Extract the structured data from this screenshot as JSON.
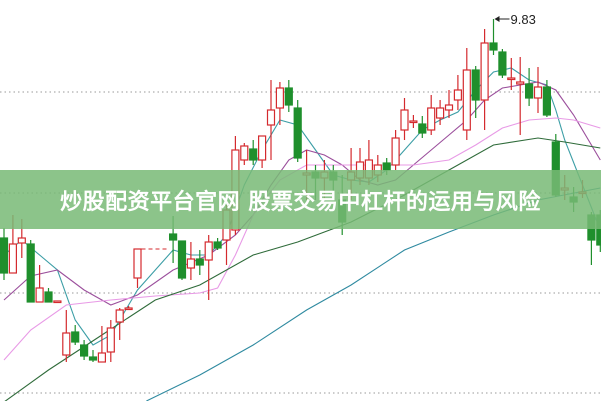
{
  "banner": {
    "title": "炒股配资平台官网 股票交易中杠杆的运用与风险",
    "background": "#7cba7a"
  },
  "chart_data": {
    "type": "candlestick",
    "ylim": [
      6.01,
      10.02
    ],
    "grid": {
      "y_dotted": [
        9.1,
        8.09,
        7.09,
        6.09
      ]
    },
    "colors": {
      "up": "#d42a2e",
      "down": "#1f8f2c"
    },
    "candles_ohlc_order": "open, close, high, low",
    "candles": [
      [
        7.64,
        7.29,
        7.74,
        7.22
      ],
      [
        7.29,
        7.58,
        7.87,
        7.29
      ],
      [
        7.59,
        7.64,
        7.83,
        7.44
      ],
      [
        7.58,
        7.0,
        7.62,
        7.0
      ],
      [
        7.0,
        7.14,
        7.37,
        7.0
      ],
      [
        7.1,
        7.0,
        7.14,
        7.0
      ],
      [
        7.0,
        7.01,
        7.01,
        7.0
      ],
      [
        6.47,
        6.69,
        6.92,
        6.4
      ],
      [
        6.7,
        6.6,
        6.77,
        6.57
      ],
      [
        6.57,
        6.46,
        6.62,
        6.42
      ],
      [
        6.45,
        6.42,
        6.52,
        6.4
      ],
      [
        6.4,
        6.49,
        6.76,
        6.4
      ],
      [
        6.5,
        6.74,
        6.82,
        6.4
      ],
      [
        6.8,
        6.92,
        6.94,
        6.62
      ],
      [
        6.94,
        6.94,
        6.96,
        6.92
      ],
      [
        7.24,
        7.53,
        7.53,
        7.14
      ],
      null,
      null,
      null,
      [
        7.68,
        7.62,
        7.86,
        7.39
      ],
      [
        7.61,
        7.24,
        7.61,
        7.22
      ],
      [
        7.34,
        7.43,
        7.6,
        7.22
      ],
      [
        7.43,
        7.37,
        7.52,
        7.27
      ],
      [
        7.42,
        7.6,
        7.67,
        7.02
      ],
      [
        7.6,
        7.54,
        7.64,
        7.52
      ],
      [
        7.62,
        7.92,
        7.97,
        7.37
      ],
      [
        7.72,
        8.52,
        8.66,
        7.67
      ],
      [
        8.42,
        8.56,
        8.59,
        8.37
      ],
      [
        8.53,
        8.42,
        8.62,
        8.37
      ],
      [
        8.42,
        8.66,
        8.66,
        8.34
      ],
      [
        8.77,
        8.92,
        9.22,
        8.42
      ],
      [
        8.94,
        9.14,
        9.2,
        8.77
      ],
      [
        9.14,
        8.97,
        9.22,
        8.9
      ],
      [
        8.94,
        8.44,
        9.02,
        8.4
      ],
      [
        8.27,
        8.29,
        8.52,
        8.02
      ],
      [
        8.3,
        8.24,
        8.37,
        8.02
      ],
      [
        8.24,
        8.3,
        8.42,
        8.02
      ],
      [
        8.3,
        8.22,
        8.37,
        8.07
      ],
      [
        8.02,
        7.8,
        8.27,
        7.67
      ],
      [
        8.22,
        8.3,
        8.54,
        8.02
      ],
      [
        8.24,
        8.4,
        8.54,
        8.17
      ],
      [
        8.24,
        8.42,
        8.62,
        8.17
      ],
      [
        8.27,
        8.37,
        8.47,
        8.2
      ],
      [
        8.39,
        8.32,
        8.44,
        8.27
      ],
      [
        8.37,
        8.64,
        8.72,
        8.32
      ],
      [
        8.72,
        8.92,
        9.04,
        8.62
      ],
      [
        8.8,
        8.81,
        8.87,
        8.74
      ],
      [
        8.78,
        8.69,
        8.86,
        8.64
      ],
      [
        8.72,
        8.94,
        9.07,
        8.67
      ],
      [
        8.84,
        8.94,
        9.02,
        8.77
      ],
      [
        8.92,
        8.97,
        9.12,
        8.84
      ],
      [
        9.02,
        9.12,
        9.27,
        8.92
      ],
      [
        8.72,
        9.32,
        9.54,
        8.62
      ],
      [
        9.32,
        9.02,
        9.36,
        8.84
      ],
      [
        9.02,
        9.59,
        9.73,
        8.72
      ],
      [
        9.59,
        9.52,
        9.83,
        9.47
      ],
      [
        9.5,
        9.27,
        9.53,
        9.24
      ],
      [
        9.24,
        9.24,
        9.44,
        9.12
      ],
      [
        9.18,
        9.2,
        9.45,
        8.67
      ],
      [
        9.18,
        9.04,
        9.34,
        8.96
      ],
      [
        9.04,
        9.15,
        9.35,
        8.89
      ],
      [
        9.15,
        8.87,
        9.22,
        8.85
      ],
      [
        8.6,
        8.07,
        8.68,
        8.05
      ],
      [
        8.12,
        8.14,
        8.27,
        8.02
      ],
      [
        8.05,
        8.0,
        8.15,
        7.9
      ],
      [
        8.09,
        8.1,
        8.22,
        8.04
      ],
      [
        7.87,
        7.62,
        7.9,
        7.37
      ],
      [
        7.87,
        7.57,
        7.92,
        7.5
      ]
    ],
    "moving_averages": [
      {
        "color": "#3c9ea6",
        "points": [
          [
            0,
            7.47
          ],
          [
            2,
            7.62
          ],
          [
            4,
            7.47
          ],
          [
            6,
            7.32
          ],
          [
            8,
            6.82
          ],
          [
            10,
            6.57
          ],
          [
            12,
            6.67
          ],
          [
            14,
            6.97
          ],
          [
            15,
            7.12
          ],
          [
            19,
            7.52
          ],
          [
            21,
            7.47
          ],
          [
            23,
            7.47
          ],
          [
            25,
            7.67
          ],
          [
            27,
            8.17
          ],
          [
            29,
            8.52
          ],
          [
            31,
            8.82
          ],
          [
            33,
            8.77
          ],
          [
            35,
            8.52
          ],
          [
            37,
            8.27
          ],
          [
            39,
            8.22
          ],
          [
            41,
            8.2
          ],
          [
            43,
            8.32
          ],
          [
            45,
            8.52
          ],
          [
            47,
            8.72
          ],
          [
            49,
            8.82
          ],
          [
            51,
            8.9
          ],
          [
            53,
            9.12
          ],
          [
            55,
            9.3
          ],
          [
            57,
            9.34
          ],
          [
            59,
            9.22
          ],
          [
            61,
            9.17
          ],
          [
            62,
            8.92
          ],
          [
            63,
            8.62
          ],
          [
            65,
            8.17
          ],
          [
            67,
            7.72
          ]
        ]
      },
      {
        "color": "#9b4f9c",
        "points": [
          [
            0,
            7.02
          ],
          [
            3,
            7.26
          ],
          [
            6,
            7.32
          ],
          [
            9,
            7.12
          ],
          [
            12,
            6.97
          ],
          [
            15,
            7.07
          ],
          [
            19,
            7.32
          ],
          [
            23,
            7.47
          ],
          [
            26,
            7.67
          ],
          [
            28,
            7.87
          ],
          [
            30,
            8.17
          ],
          [
            32,
            8.42
          ],
          [
            34,
            8.52
          ],
          [
            36,
            8.47
          ],
          [
            38,
            8.37
          ],
          [
            40,
            8.22
          ],
          [
            42,
            8.17
          ],
          [
            44,
            8.22
          ],
          [
            46,
            8.37
          ],
          [
            48,
            8.52
          ],
          [
            50,
            8.67
          ],
          [
            52,
            8.82
          ],
          [
            54,
            9.02
          ],
          [
            56,
            9.14
          ],
          [
            58,
            9.17
          ],
          [
            60,
            9.2
          ],
          [
            62,
            9.12
          ],
          [
            64,
            8.87
          ],
          [
            66,
            8.57
          ],
          [
            67,
            8.42
          ]
        ]
      },
      {
        "color": "#e89ae6",
        "points": [
          [
            0,
            6.42
          ],
          [
            3,
            6.72
          ],
          [
            7,
            6.97
          ],
          [
            12,
            7.02
          ],
          [
            17,
            7.06
          ],
          [
            22,
            7.09
          ],
          [
            24,
            7.14
          ],
          [
            26,
            7.47
          ],
          [
            28,
            7.87
          ],
          [
            31,
            8.22
          ],
          [
            34,
            8.37
          ],
          [
            40,
            8.37
          ],
          [
            46,
            8.37
          ],
          [
            50,
            8.42
          ],
          [
            53,
            8.57
          ],
          [
            56,
            8.74
          ],
          [
            59,
            8.82
          ],
          [
            62,
            8.84
          ],
          [
            64,
            8.82
          ],
          [
            67,
            8.74
          ]
        ]
      },
      {
        "color": "#2f6b3a",
        "points": [
          [
            0,
            6.0
          ],
          [
            5,
            6.32
          ],
          [
            11,
            6.67
          ],
          [
            17,
            7.02
          ],
          [
            22,
            7.17
          ],
          [
            28,
            7.47
          ],
          [
            33,
            7.6
          ],
          [
            39,
            7.8
          ],
          [
            45,
            8.07
          ],
          [
            50,
            8.32
          ],
          [
            55,
            8.57
          ],
          [
            60,
            8.64
          ],
          [
            63,
            8.6
          ],
          [
            67,
            8.54
          ]
        ]
      },
      {
        "color": "#2f8aa0",
        "points": [
          [
            16,
            6.01
          ],
          [
            22,
            6.27
          ],
          [
            28,
            6.57
          ],
          [
            34,
            6.92
          ],
          [
            39,
            7.17
          ],
          [
            45,
            7.52
          ],
          [
            50,
            7.7
          ],
          [
            55,
            7.87
          ],
          [
            60,
            8.02
          ],
          [
            67,
            8.14
          ]
        ]
      }
    ],
    "annotations": [
      {
        "candle_index": 55,
        "value": 9.83,
        "label": "9.83"
      }
    ]
  }
}
